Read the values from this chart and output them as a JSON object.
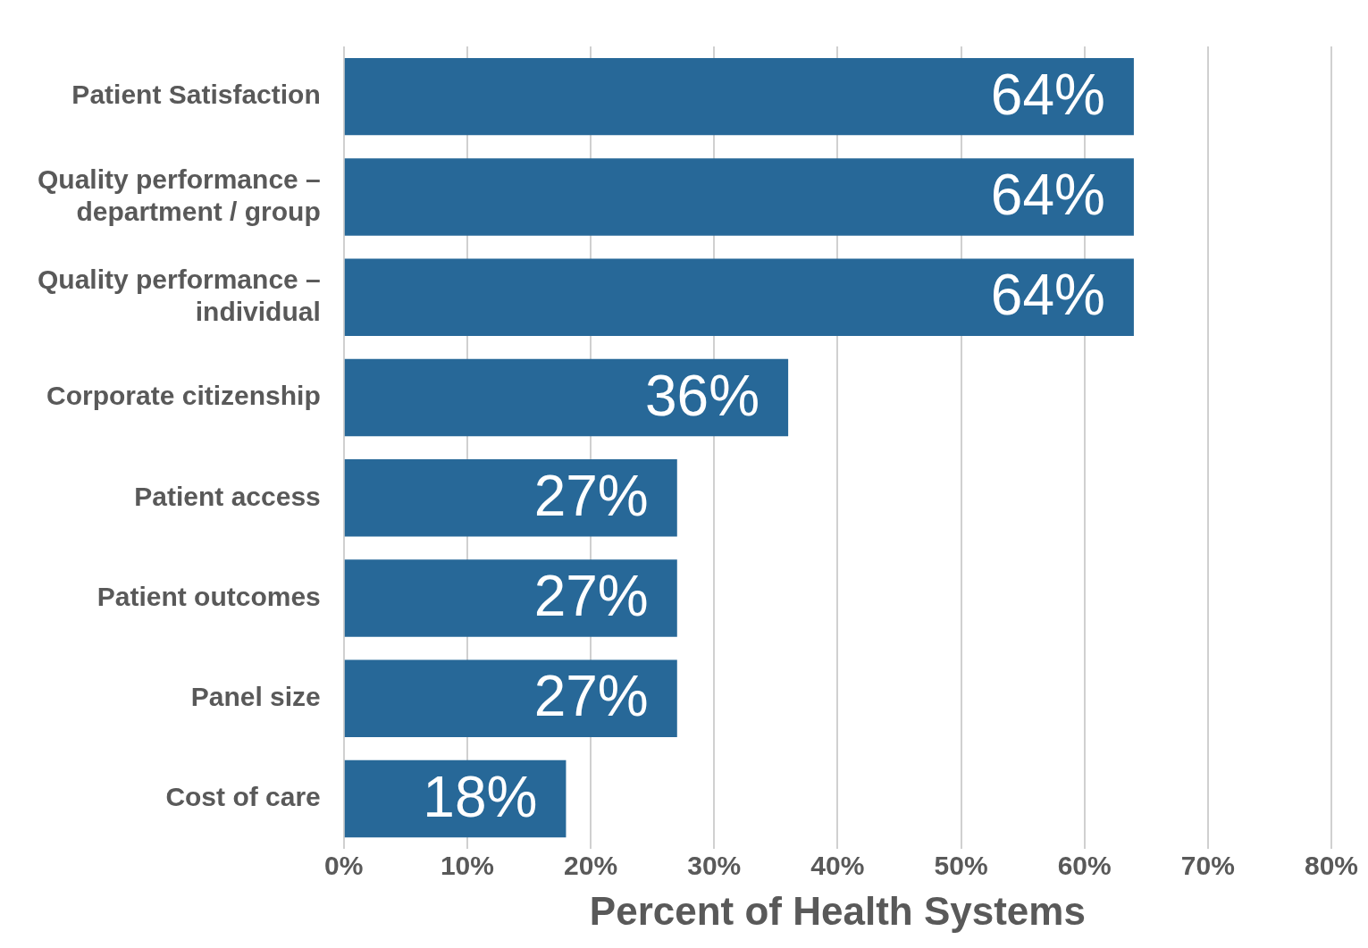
{
  "chart_data": {
    "type": "bar",
    "orientation": "horizontal",
    "xlabel": "Percent of Health Systems",
    "categories": [
      "Patient Satisfaction",
      "Quality performance – department / group",
      "Quality performance – individual",
      "Corporate citizenship",
      "Patient access",
      "Patient outcomes",
      "Panel size",
      "Cost of care"
    ],
    "values": [
      64,
      64,
      64,
      36,
      27,
      27,
      27,
      18
    ],
    "value_labels": [
      "64%",
      "64%",
      "64%",
      "36%",
      "27%",
      "27%",
      "27%",
      "18%"
    ],
    "color": "#276898",
    "xlim": [
      0,
      80
    ],
    "xticks": [
      {
        "value": 0,
        "label": "0%"
      },
      {
        "value": 10,
        "label": "10%"
      },
      {
        "value": 20,
        "label": "20%"
      },
      {
        "value": 30,
        "label": "30%"
      },
      {
        "value": 40,
        "label": "40%"
      },
      {
        "value": 50,
        "label": "50%"
      },
      {
        "value": 60,
        "label": "60%"
      },
      {
        "value": 70,
        "label": "70%"
      },
      {
        "value": 80,
        "label": "80%"
      }
    ],
    "grid": "x",
    "legend": false
  }
}
